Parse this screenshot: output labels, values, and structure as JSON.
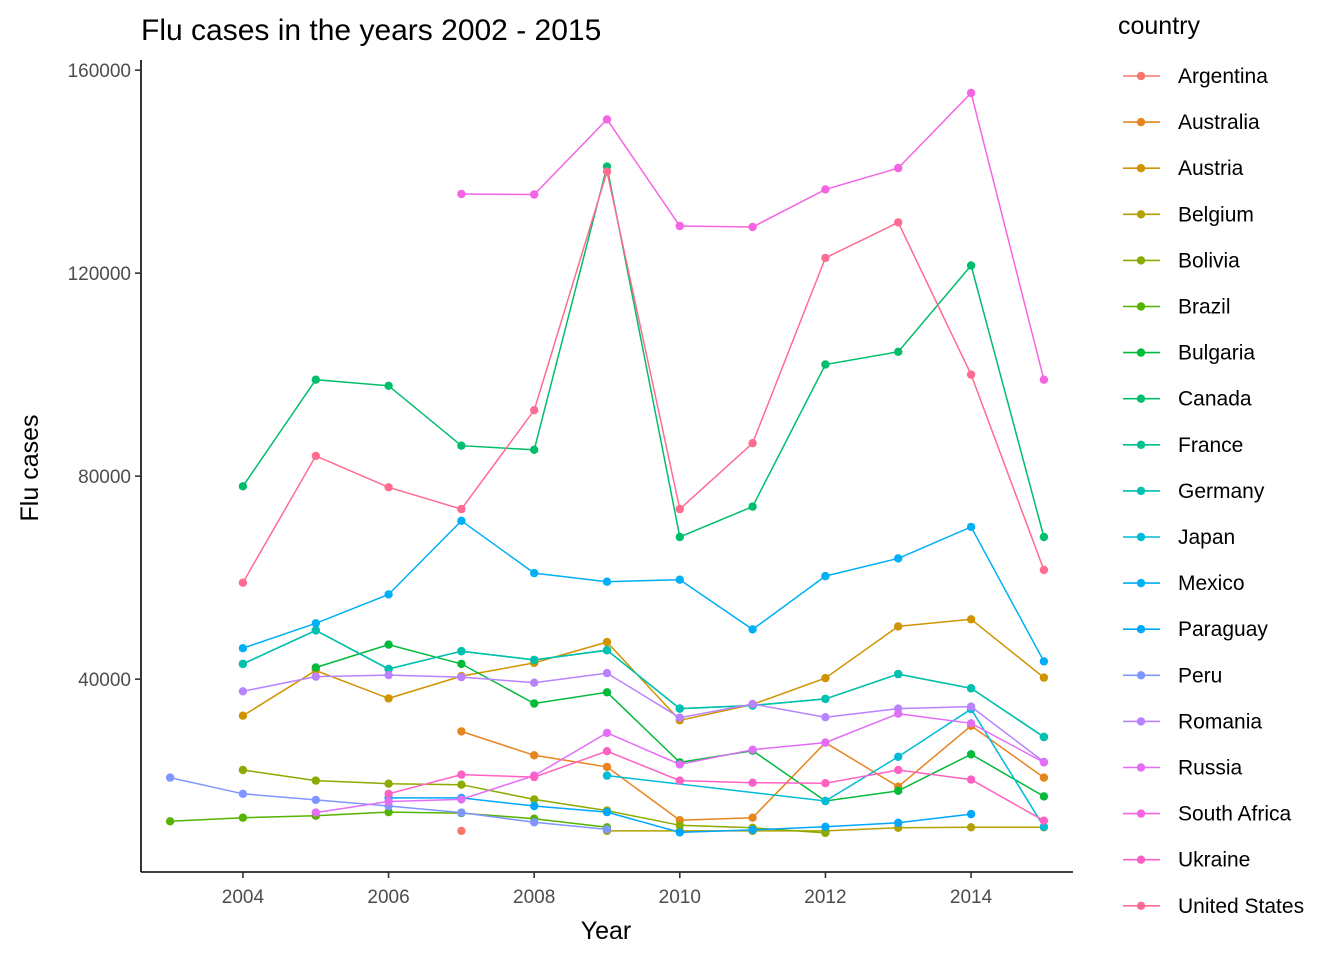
{
  "chart_data": {
    "type": "line",
    "title": "Flu cases in the years 2002 - 2015",
    "xlabel": "Year",
    "ylabel": "Flu cases",
    "xlim": [
      2002.6,
      2015.4
    ],
    "ylim": [
      2000,
      162000
    ],
    "x_ticks": [
      2004,
      2006,
      2008,
      2010,
      2012,
      2014
    ],
    "y_ticks": [
      40000,
      80000,
      120000,
      160000
    ],
    "grid": false,
    "legend_title": "country",
    "legend_position": "right",
    "series": [
      {
        "name": "Argentina",
        "color": "#F8766D",
        "points": [
          [
            2007,
            10100
          ]
        ]
      },
      {
        "name": "Australia",
        "color": "#E7851E",
        "points": [
          [
            2007,
            29700
          ],
          [
            2008,
            25000
          ],
          [
            2009,
            22700
          ],
          [
            2010,
            12200
          ],
          [
            2011,
            12700
          ],
          [
            2012,
            27500
          ],
          [
            2013,
            18800
          ],
          [
            2014,
            30800
          ],
          [
            2015,
            20600
          ]
        ]
      },
      {
        "name": "Austria",
        "color": "#D09400",
        "points": [
          [
            2004,
            32800
          ],
          [
            2005,
            41700
          ],
          [
            2006,
            36200
          ],
          [
            2007,
            40600
          ],
          [
            2008,
            43200
          ],
          [
            2009,
            47300
          ],
          [
            2010,
            31900
          ],
          [
            2011,
            35000
          ],
          [
            2012,
            40200
          ],
          [
            2013,
            50400
          ],
          [
            2014,
            51800
          ],
          [
            2015,
            40300
          ]
        ]
      },
      {
        "name": "Belgium",
        "color": "#B2A100",
        "points": [
          [
            2009,
            10100
          ],
          [
            2010,
            10100
          ],
          [
            2011,
            10100
          ],
          [
            2012,
            10100
          ],
          [
            2013,
            10700
          ],
          [
            2014,
            10800
          ],
          [
            2015,
            10800
          ]
        ]
      },
      {
        "name": "Bolivia",
        "color": "#8BAB00",
        "points": [
          [
            2004,
            22100
          ],
          [
            2005,
            20000
          ],
          [
            2006,
            19400
          ],
          [
            2007,
            19200
          ],
          [
            2008,
            16300
          ],
          [
            2009,
            14100
          ],
          [
            2010,
            11200
          ],
          [
            2011,
            10700
          ],
          [
            2012,
            9700
          ]
        ]
      },
      {
        "name": "Brazil",
        "color": "#55B400",
        "points": [
          [
            2003,
            12000
          ],
          [
            2004,
            12700
          ],
          [
            2005,
            13100
          ],
          [
            2006,
            13800
          ],
          [
            2007,
            13600
          ],
          [
            2008,
            12500
          ],
          [
            2009,
            10800
          ]
        ]
      },
      {
        "name": "Bulgaria",
        "color": "#00BA38",
        "points": [
          [
            2005,
            42300
          ],
          [
            2006,
            46800
          ],
          [
            2007,
            43000
          ],
          [
            2008,
            35200
          ],
          [
            2009,
            37400
          ],
          [
            2010,
            23600
          ],
          [
            2011,
            25900
          ],
          [
            2012,
            16000
          ],
          [
            2013,
            18000
          ],
          [
            2014,
            25200
          ],
          [
            2015,
            16900
          ]
        ]
      },
      {
        "name": "Canada",
        "color": "#00BE6C",
        "points": [
          [
            2004,
            78000
          ],
          [
            2005,
            99000
          ],
          [
            2006,
            97800
          ],
          [
            2007,
            86000
          ],
          [
            2008,
            85200
          ],
          [
            2009,
            141000
          ],
          [
            2010,
            68000
          ],
          [
            2011,
            74000
          ],
          [
            2012,
            102000
          ],
          [
            2013,
            104500
          ],
          [
            2014,
            121500
          ],
          [
            2015,
            68000
          ]
        ]
      },
      {
        "name": "France",
        "color": "#00C08E",
        "points": [
          [
            2004,
            43000
          ],
          [
            2005,
            49600
          ],
          [
            2006,
            42000
          ],
          [
            2007,
            45500
          ],
          [
            2008,
            43800
          ],
          [
            2009,
            45700
          ],
          [
            2010,
            34200
          ],
          [
            2011,
            34800
          ],
          [
            2012,
            36100
          ],
          [
            2013,
            41000
          ],
          [
            2014,
            38200
          ],
          [
            2015,
            28600
          ]
        ]
      },
      {
        "name": "Germany",
        "color": "#00C0AF",
        "points": [
          [
            2004,
            43000
          ],
          [
            2005,
            49600
          ],
          [
            2006,
            42000
          ],
          [
            2007,
            45500
          ],
          [
            2008,
            43800
          ],
          [
            2009,
            45700
          ],
          [
            2010,
            34200
          ],
          [
            2011,
            34800
          ],
          [
            2012,
            36100
          ],
          [
            2013,
            41000
          ],
          [
            2014,
            38200
          ],
          [
            2015,
            28600
          ]
        ]
      },
      {
        "name": "Japan",
        "color": "#00BCD8",
        "points": [
          [
            2009,
            21000
          ],
          [
            2012,
            16000
          ],
          [
            2013,
            24700
          ],
          [
            2014,
            34100
          ],
          [
            2015,
            10900
          ]
        ]
      },
      {
        "name": "Mexico",
        "color": "#00B0F6",
        "points": [
          [
            2004,
            46100
          ],
          [
            2005,
            51000
          ],
          [
            2006,
            56700
          ],
          [
            2007,
            71200
          ],
          [
            2008,
            60900
          ],
          [
            2009,
            59200
          ],
          [
            2010,
            59600
          ],
          [
            2011,
            49800
          ],
          [
            2012,
            60300
          ],
          [
            2013,
            63800
          ],
          [
            2014,
            70000
          ],
          [
            2015,
            43500
          ]
        ]
      },
      {
        "name": "Paraguay",
        "color": "#00A7FF",
        "points": [
          [
            2006,
            16600
          ],
          [
            2007,
            16600
          ],
          [
            2008,
            15000
          ],
          [
            2009,
            13800
          ],
          [
            2010,
            9800
          ],
          [
            2011,
            10300
          ],
          [
            2012,
            10900
          ],
          [
            2013,
            11700
          ],
          [
            2014,
            13400
          ]
        ]
      },
      {
        "name": "Peru",
        "color": "#7F96FF",
        "points": [
          [
            2003,
            20600
          ],
          [
            2004,
            17400
          ],
          [
            2005,
            16200
          ],
          [
            2006,
            15000
          ],
          [
            2007,
            13700
          ],
          [
            2008,
            11800
          ],
          [
            2009,
            10400
          ]
        ]
      },
      {
        "name": "Romania",
        "color": "#B983FF",
        "points": [
          [
            2004,
            37600
          ],
          [
            2005,
            40500
          ],
          [
            2006,
            40800
          ],
          [
            2007,
            40400
          ],
          [
            2008,
            39300
          ],
          [
            2009,
            41200
          ],
          [
            2010,
            32400
          ],
          [
            2011,
            35100
          ],
          [
            2012,
            32500
          ],
          [
            2013,
            34200
          ],
          [
            2014,
            34600
          ],
          [
            2015,
            23700
          ]
        ]
      },
      {
        "name": "Russia",
        "color": "#E36EF6",
        "points": [
          [
            2005,
            13700
          ],
          [
            2006,
            15900
          ],
          [
            2007,
            16300
          ],
          [
            2008,
            21000
          ],
          [
            2009,
            29400
          ],
          [
            2010,
            23200
          ],
          [
            2011,
            26100
          ],
          [
            2012,
            27500
          ],
          [
            2013,
            33200
          ],
          [
            2014,
            31300
          ],
          [
            2015,
            23600
          ]
        ]
      },
      {
        "name": "South Africa",
        "color": "#F564E3",
        "points": [
          [
            2007,
            135600
          ],
          [
            2008,
            135500
          ],
          [
            2009,
            150300
          ],
          [
            2010,
            129300
          ],
          [
            2011,
            129100
          ],
          [
            2012,
            136500
          ],
          [
            2013,
            140700
          ],
          [
            2014,
            155500
          ],
          [
            2015,
            99000
          ]
        ]
      },
      {
        "name": "Ukraine",
        "color": "#FF61C3",
        "points": [
          [
            2006,
            17400
          ],
          [
            2007,
            21200
          ],
          [
            2008,
            20700
          ],
          [
            2009,
            25800
          ],
          [
            2010,
            20000
          ],
          [
            2011,
            19600
          ],
          [
            2012,
            19500
          ],
          [
            2013,
            22100
          ],
          [
            2014,
            20200
          ],
          [
            2015,
            12100
          ]
        ]
      },
      {
        "name": "United States",
        "color": "#FF6C91",
        "points": [
          [
            2004,
            59000
          ],
          [
            2005,
            84000
          ],
          [
            2006,
            77800
          ],
          [
            2007,
            73500
          ],
          [
            2008,
            93000
          ],
          [
            2009,
            140000
          ],
          [
            2010,
            73500
          ],
          [
            2011,
            86500
          ],
          [
            2012,
            123000
          ],
          [
            2013,
            130000
          ],
          [
            2014,
            100000
          ],
          [
            2015,
            61500
          ]
        ]
      }
    ]
  }
}
